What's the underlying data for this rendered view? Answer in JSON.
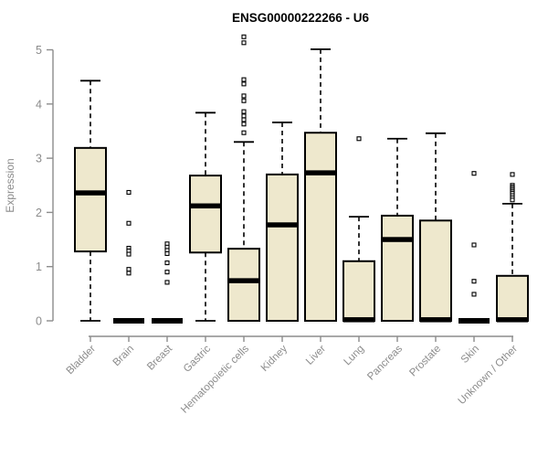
{
  "chart_data": {
    "type": "boxplot",
    "title": "ENSG00000222266 - U6",
    "xlabel": "",
    "ylabel": "Expression",
    "ylim": [
      0,
      5
    ],
    "yticks": [
      0,
      1,
      2,
      3,
      4,
      5
    ],
    "grid": false,
    "legend": "none",
    "colors": {
      "box_fill": "#EEE8CD",
      "box_border": "#000000",
      "median": "#000000",
      "axis": "#8c8c8c",
      "labels": "#8c8c8c",
      "title": "#000000"
    },
    "categories": [
      "Bladder",
      "Brain",
      "Breast",
      "Gastric",
      "Hematopoietic cells",
      "Kidney",
      "Liver",
      "Lung",
      "Pancreas",
      "Prostate",
      "Skin",
      "Unknown / Other"
    ],
    "boxes": [
      {
        "name": "Bladder",
        "low": 0,
        "q1": 1.28,
        "median": 2.36,
        "q3": 3.19,
        "high": 4.43,
        "outliers": []
      },
      {
        "name": "Brain",
        "low": 0,
        "q1": 0,
        "median": 0,
        "q3": 0,
        "high": 0,
        "outliers": [
          2.37,
          1.8,
          1.34,
          1.29,
          1.23,
          0.95,
          0.88
        ]
      },
      {
        "name": "Breast",
        "low": 0,
        "q1": 0,
        "median": 0,
        "q3": 0,
        "high": 0,
        "outliers": [
          1.42,
          1.36,
          1.3,
          1.24,
          1.07,
          0.9,
          0.71
        ]
      },
      {
        "name": "Gastric",
        "low": 0,
        "q1": 1.26,
        "median": 2.12,
        "q3": 2.68,
        "high": 3.84,
        "outliers": []
      },
      {
        "name": "Hematopoietic cells",
        "low": 0,
        "q1": 0,
        "median": 0.74,
        "q3": 1.33,
        "high": 3.3,
        "outliers": [
          5.24,
          5.13,
          4.45,
          4.37,
          4.15,
          4.06,
          3.86,
          3.78,
          3.71,
          3.63,
          3.47
        ]
      },
      {
        "name": "Kidney",
        "low": 0,
        "q1": 0,
        "median": 1.77,
        "q3": 2.7,
        "high": 3.66,
        "outliers": []
      },
      {
        "name": "Liver",
        "low": 0,
        "q1": 0,
        "median": 2.73,
        "q3": 3.47,
        "high": 5.01,
        "outliers": []
      },
      {
        "name": "Lung",
        "low": 0,
        "q1": 0,
        "median": 0.02,
        "q3": 1.1,
        "high": 1.92,
        "outliers": [
          3.36
        ]
      },
      {
        "name": "Pancreas",
        "low": 0,
        "q1": 0,
        "median": 1.5,
        "q3": 1.94,
        "high": 3.36,
        "outliers": []
      },
      {
        "name": "Prostate",
        "low": 0,
        "q1": 0,
        "median": 0.02,
        "q3": 1.85,
        "high": 3.46,
        "outliers": []
      },
      {
        "name": "Skin",
        "low": 0,
        "q1": 0,
        "median": 0,
        "q3": 0,
        "high": 0,
        "outliers": [
          2.72,
          1.4,
          0.73,
          0.49
        ]
      },
      {
        "name": "Unknown / Other",
        "low": 0,
        "q1": 0,
        "median": 0.02,
        "q3": 0.83,
        "high": 2.16,
        "outliers": [
          2.7,
          2.5,
          2.47,
          2.44,
          2.41,
          2.38,
          2.35,
          2.31,
          2.27,
          2.23
        ]
      }
    ]
  }
}
